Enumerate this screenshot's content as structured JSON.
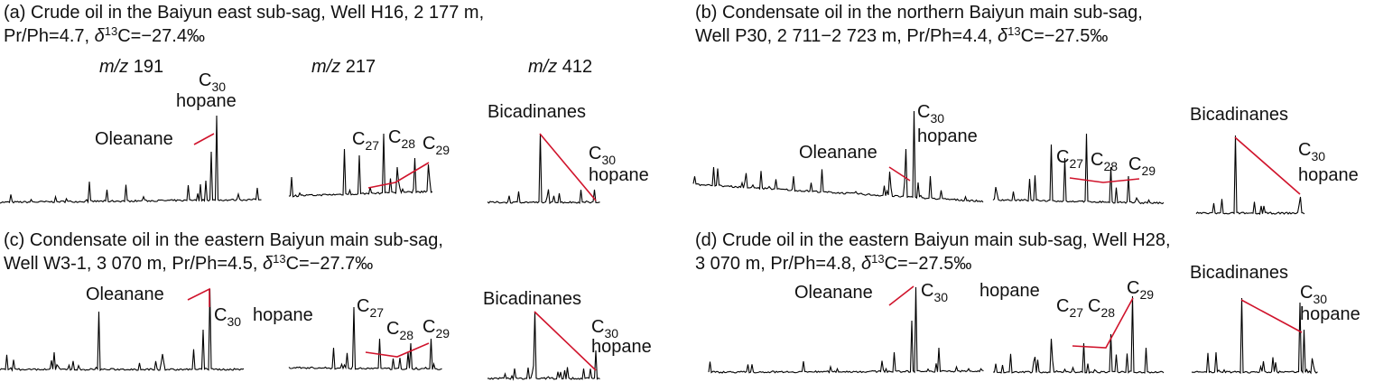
{
  "panels": [
    {
      "title_line1": "(a) Crude oil in the Baiyun east sub-sag, Well H16, 2 177 m,",
      "title_line2": {
        "before": "Pr/Ph=4.7, ",
        "delta": "δ",
        "superscript": "13",
        "after": "C=−27.4‰"
      },
      "mz_labels": [
        {
          "italic": "m/z",
          "number": "191"
        },
        {
          "italic": "m/z",
          "number": "217"
        },
        {
          "italic": "m/z",
          "number": "412"
        }
      ],
      "labels": {
        "oleanane": "Oleanane",
        "c30": {
          "base": "C",
          "sub": "30"
        },
        "hopane": "hopane",
        "c27": {
          "base": "C",
          "sub": "27"
        },
        "c28": {
          "base": "C",
          "sub": "28"
        },
        "c29": {
          "base": "C",
          "sub": "29"
        },
        "bicadinanes": "Bicadinanes",
        "c30_b": {
          "base": "C",
          "sub": "30"
        },
        "hopane_b": "hopane"
      }
    },
    {
      "title_line1": "(b) Condensate oil in the northern Baiyun main sub-sag,",
      "title_line2": {
        "before": "Well P30, 2 711−2 723 m, Pr/Ph=4.4, ",
        "delta": "δ",
        "superscript": "13",
        "after": "C=−27.5‰"
      },
      "labels": {
        "oleanane": "Oleanane",
        "c30": {
          "base": "C",
          "sub": "30"
        },
        "hopane": "hopane",
        "c27": {
          "base": "C",
          "sub": "27"
        },
        "c28": {
          "base": "C",
          "sub": "28"
        },
        "c29": {
          "base": "C",
          "sub": "29"
        },
        "bicadinanes": "Bicadinanes",
        "c30_b": {
          "base": "C",
          "sub": "30"
        },
        "hopane_b": "hopane"
      }
    },
    {
      "title_line1": "(c) Condensate oil in the eastern Baiyun main sub-sag,",
      "title_line2": {
        "before": "Well W3-1, 3 070 m, Pr/Ph=4.5, ",
        "delta": "δ",
        "superscript": "13",
        "after": "C=−27.7‰"
      },
      "labels": {
        "oleanane": "Oleanane",
        "c30": {
          "base": "C",
          "sub": "30"
        },
        "hopane": "hopane",
        "c27": {
          "base": "C",
          "sub": "27"
        },
        "c28": {
          "base": "C",
          "sub": "28"
        },
        "c29": {
          "base": "C",
          "sub": "29"
        },
        "bicadinanes": "Bicadinanes",
        "c30_b": {
          "base": "C",
          "sub": "30"
        },
        "hopane_b": "hopane"
      }
    },
    {
      "title_line1": "(d) Crude oil in the eastern Baiyun main sub-sag, Well H28,",
      "title_line2": {
        "before": "3 070 m, Pr/Ph=4.8, ",
        "delta": "δ",
        "superscript": "13",
        "after": "C=−27.5‰"
      },
      "labels": {
        "oleanane": "Oleanane",
        "c30": {
          "base": "C",
          "sub": "30"
        },
        "hopane": "hopane",
        "c27": {
          "base": "C",
          "sub": "27"
        },
        "c28": {
          "base": "C",
          "sub": "28"
        },
        "c29": {
          "base": "C",
          "sub": "29"
        },
        "bicadinanes": "Bicadinanes",
        "c30_b": {
          "base": "C",
          "sub": "30"
        },
        "hopane_b": "hopane"
      }
    }
  ]
}
